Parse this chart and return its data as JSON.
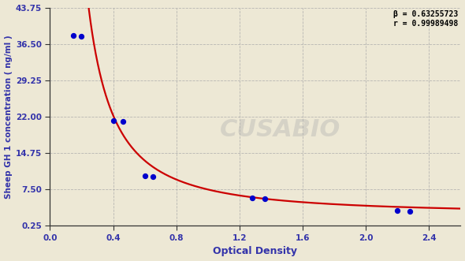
{
  "scatter_x": [
    0.15,
    0.2,
    0.4,
    0.46,
    0.6,
    0.65,
    1.28,
    1.36,
    2.2,
    2.28
  ],
  "scatter_y": [
    38.2,
    38.0,
    21.2,
    21.0,
    10.2,
    10.0,
    5.8,
    5.7,
    3.3,
    3.2
  ],
  "xlabel": "Optical Density",
  "ylabel": "Sheep GH 1 concentration ( ng/ml )",
  "xlim": [
    0.0,
    2.6
  ],
  "ylim": [
    0.25,
    43.75
  ],
  "xticks": [
    0.0,
    0.4,
    0.8,
    1.2,
    1.6,
    2.0,
    2.4
  ],
  "yticks": [
    0.25,
    7.5,
    14.75,
    22.0,
    29.25,
    36.5,
    43.75
  ],
  "ytick_labels": [
    "0.25",
    "7.50",
    "14.75",
    "22.00",
    "29.25",
    "36.50",
    "43.75"
  ],
  "xtick_labels": [
    "0.0",
    "0.4",
    "0.8",
    "1.2",
    "1.6",
    "2.0",
    "2.4"
  ],
  "scatter_color": "#0000cc",
  "curve_color": "#cc0000",
  "background_color": "#ede8d5",
  "plot_bg_color": "#ede8d5",
  "grid_color": "#aaaaaa",
  "annotation_line1": "β = 0.63255723",
  "annotation_line2": "r = 0.99989498",
  "watermark": "CUSABIO",
  "label_color": "#3333aa",
  "tick_color": "#3333aa",
  "spine_color": "#333333"
}
